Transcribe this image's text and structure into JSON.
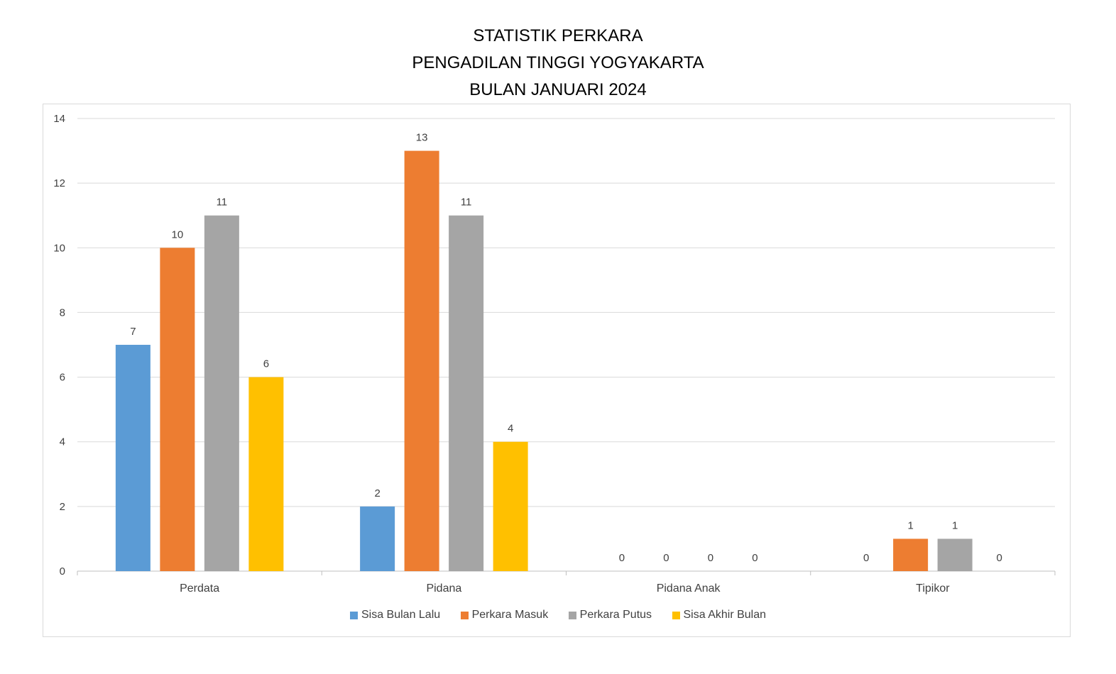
{
  "chart_data": {
    "type": "bar",
    "title": [
      "STATISTIK PERKARA",
      "PENGADILAN TINGGI YOGYAKARTA",
      "BULAN JANUARI 2024"
    ],
    "xlabel": "",
    "ylabel": "",
    "categories": [
      "Perdata",
      "Pidana",
      "Pidana Anak",
      "Tipikor"
    ],
    "series": [
      {
        "name": "Sisa Bulan Lalu",
        "color": "#5b9bd5",
        "values": [
          7,
          2,
          0,
          0
        ]
      },
      {
        "name": "Perkara Masuk",
        "color": "#ed7d31",
        "values": [
          10,
          13,
          0,
          1
        ]
      },
      {
        "name": "Perkara Putus",
        "color": "#a5a5a5",
        "values": [
          11,
          11,
          0,
          1
        ]
      },
      {
        "name": "Sisa Akhir Bulan",
        "color": "#ffc000",
        "values": [
          6,
          4,
          0,
          0
        ]
      }
    ],
    "ylim": [
      0,
      14
    ],
    "yticks": [
      0,
      2,
      4,
      6,
      8,
      10,
      12,
      14
    ],
    "grid": true,
    "legend": "bottom",
    "data_labels": true
  }
}
